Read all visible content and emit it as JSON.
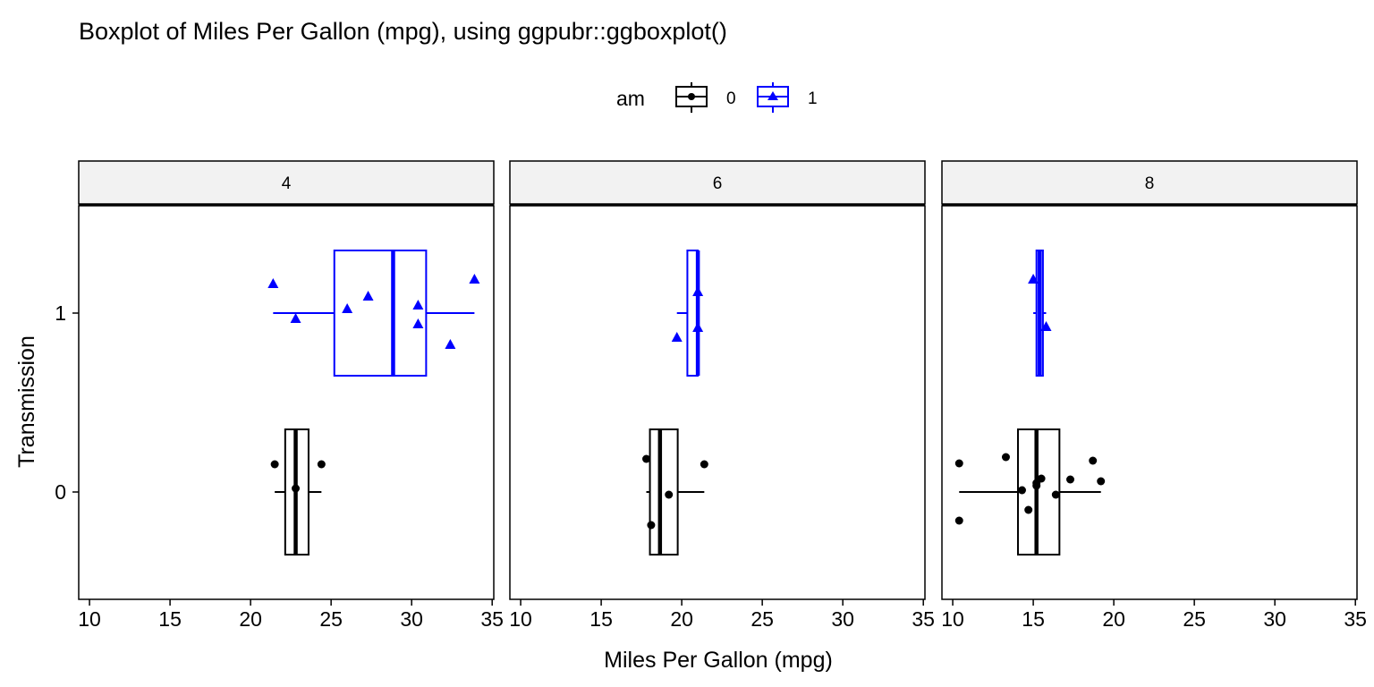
{
  "chart_data": {
    "type": "boxplot",
    "title": "Boxplot of Miles Per Gallon (mpg), using ggpubr::ggboxplot()",
    "xlabel": "Miles Per Gallon (mpg)",
    "ylabel": "Transmission",
    "xlim": [
      9.33,
      35.1
    ],
    "ylim": [
      -0.6,
      1.6
    ],
    "x_ticks": [
      10,
      15,
      20,
      25,
      30,
      35
    ],
    "y_ticks": [
      0,
      1
    ],
    "legend": {
      "title": "am",
      "position": "top",
      "entries": [
        {
          "label": "0",
          "color": "#000000",
          "shape": "circle"
        },
        {
          "label": "1",
          "color": "#0000ff",
          "shape": "triangle"
        }
      ]
    },
    "facets": [
      {
        "label": "4",
        "groups": [
          {
            "am": 0,
            "min": 21.5,
            "q1": 22.15,
            "median": 22.8,
            "q3": 23.6,
            "max": 24.4,
            "points": [
              [
                21.5,
                0.155
              ],
              [
                22.8,
                0.02
              ],
              [
                24.4,
                0.155
              ]
            ]
          },
          {
            "am": 1,
            "min": 21.4,
            "q1": 25.2,
            "median": 28.85,
            "q3": 30.9,
            "max": 33.9,
            "points": [
              [
                21.4,
                1.165
              ],
              [
                22.8,
                0.97
              ],
              [
                26.0,
                1.025
              ],
              [
                27.3,
                1.095
              ],
              [
                30.4,
                1.045
              ],
              [
                30.4,
                0.94
              ],
              [
                32.4,
                0.825
              ],
              [
                33.9,
                1.19
              ]
            ]
          }
        ]
      },
      {
        "label": "6",
        "groups": [
          {
            "am": 0,
            "min": 17.8,
            "q1": 18.025,
            "median": 18.65,
            "q3": 19.75,
            "max": 21.4,
            "points": [
              [
                17.8,
                0.185
              ],
              [
                18.1,
                -0.185
              ],
              [
                19.2,
                -0.015
              ],
              [
                21.4,
                0.155
              ]
            ]
          },
          {
            "am": 1,
            "min": 19.7,
            "q1": 20.35,
            "median": 21.0,
            "q3": 21.0,
            "max": 21.0,
            "points": [
              [
                19.7,
                0.865
              ],
              [
                21.0,
                1.12
              ],
              [
                21.0,
                0.92
              ]
            ]
          }
        ]
      },
      {
        "label": "8",
        "groups": [
          {
            "am": 0,
            "min": 10.4,
            "q1": 14.05,
            "median": 15.2,
            "q3": 16.625,
            "max": 19.2,
            "points": [
              [
                10.4,
                0.16
              ],
              [
                10.4,
                -0.16
              ],
              [
                13.3,
                0.195
              ],
              [
                14.3,
                0.01
              ],
              [
                14.7,
                -0.1
              ],
              [
                15.2,
                0.035
              ],
              [
                15.2,
                0.05
              ],
              [
                15.5,
                0.075
              ],
              [
                16.4,
                -0.015
              ],
              [
                17.3,
                0.07
              ],
              [
                18.7,
                0.175
              ],
              [
                19.2,
                0.06
              ]
            ]
          },
          {
            "am": 1,
            "min": 15.0,
            "q1": 15.2,
            "median": 15.4,
            "q3": 15.6,
            "max": 15.8,
            "points": [
              [
                15.0,
                1.19
              ],
              [
                15.8,
                0.925
              ]
            ]
          }
        ]
      }
    ]
  }
}
